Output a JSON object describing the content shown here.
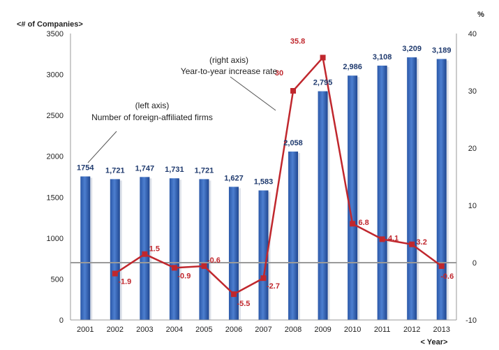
{
  "chart_data": {
    "type": "bar",
    "left_axis_title": "<# of Companies>",
    "right_axis_title": "%",
    "x_axis_title": "< Year>",
    "categories": [
      "2001",
      "2002",
      "2003",
      "2004",
      "2005",
      "2006",
      "2007",
      "2008",
      "2009",
      "2010",
      "2011",
      "2012",
      "2013"
    ],
    "series": [
      {
        "type": "bar",
        "axis": "left",
        "values": [
          1754,
          1721,
          1747,
          1731,
          1721,
          1627,
          1583,
          2058,
          2795,
          2986,
          3108,
          3209,
          3189
        ],
        "labels": [
          "1754",
          "1,721",
          "1,747",
          "1,731",
          "1,721",
          "1,627",
          "1,583",
          "2,058",
          "2,795",
          "2,986",
          "3,108",
          "3,209",
          "3,189"
        ],
        "color": "#3d6fc0"
      },
      {
        "type": "line",
        "axis": "right",
        "values": [
          null,
          -1.9,
          1.5,
          -0.9,
          -0.6,
          -5.5,
          -2.7,
          30,
          35.8,
          6.8,
          4.1,
          3.2,
          -0.6
        ],
        "labels": [
          "",
          "-1.9",
          "1.5",
          "-0.9",
          "-0.6",
          "-5.5",
          "-2.7",
          "30",
          "35.8",
          "6.8",
          "4.1",
          "3.2",
          "-0.6"
        ],
        "color": "#c0272d"
      }
    ],
    "left_ylim": [
      0,
      3500
    ],
    "left_ticks": [
      0,
      500,
      1000,
      1500,
      2000,
      2500,
      3000,
      3500
    ],
    "right_ylim": [
      -10,
      40
    ],
    "right_ticks": [
      -10,
      0,
      10,
      20,
      30,
      40
    ],
    "annotations": [
      {
        "lines": [
          "(left axis)",
          "Number of foreign-affiliated firms"
        ]
      },
      {
        "lines": [
          "(right axis)",
          "Year-to-year increase rate"
        ]
      }
    ]
  }
}
